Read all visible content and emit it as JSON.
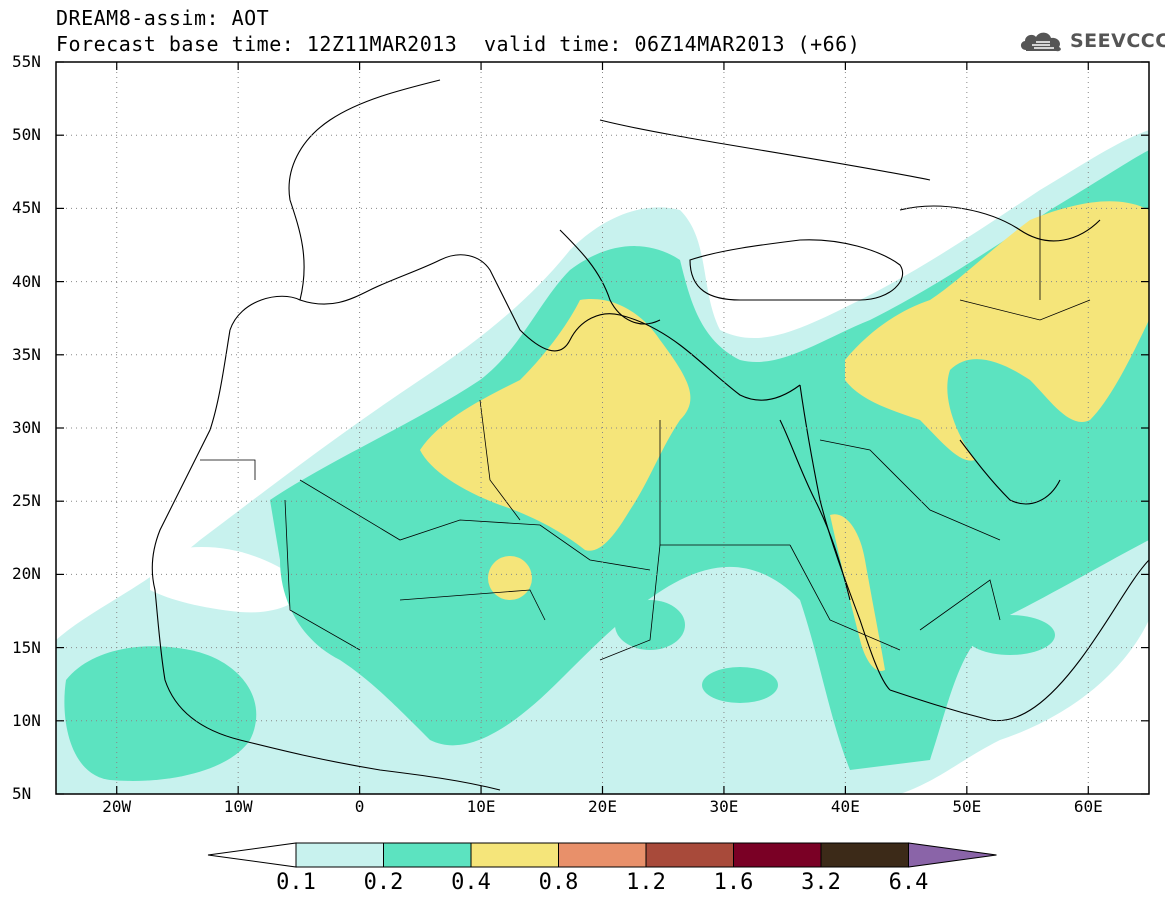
{
  "header": {
    "title_line1": "DREAM8-assim: AOT",
    "title_line2": "Forecast base time: 12Z11MAR2013",
    "valid_time": "valid time: 06Z14MAR2013 (+66)",
    "logo_text": "SEEVCCC",
    "logo_icon": "cloud-icon"
  },
  "map": {
    "lat_labels": [
      "55N",
      "50N",
      "45N",
      "40N",
      "35N",
      "30N",
      "25N",
      "20N",
      "15N",
      "10N",
      "5N"
    ],
    "lon_labels": [
      "20W",
      "10W",
      "0",
      "10E",
      "20E",
      "30E",
      "40E",
      "50E",
      "60E"
    ],
    "lat_range": [
      5,
      55
    ],
    "lon_range": [
      -25,
      65
    ],
    "grid": "dotted"
  },
  "colorbar": {
    "levels": [
      "0.1",
      "0.2",
      "0.4",
      "0.8",
      "1.2",
      "1.6",
      "3.2",
      "6.4"
    ],
    "colors": [
      "#c8f2ee",
      "#5ce3c0",
      "#f5e57a",
      "#e8906a",
      "#a84a3a",
      "#7a0025",
      "#3c2a18",
      "#8a64a8"
    ]
  }
}
